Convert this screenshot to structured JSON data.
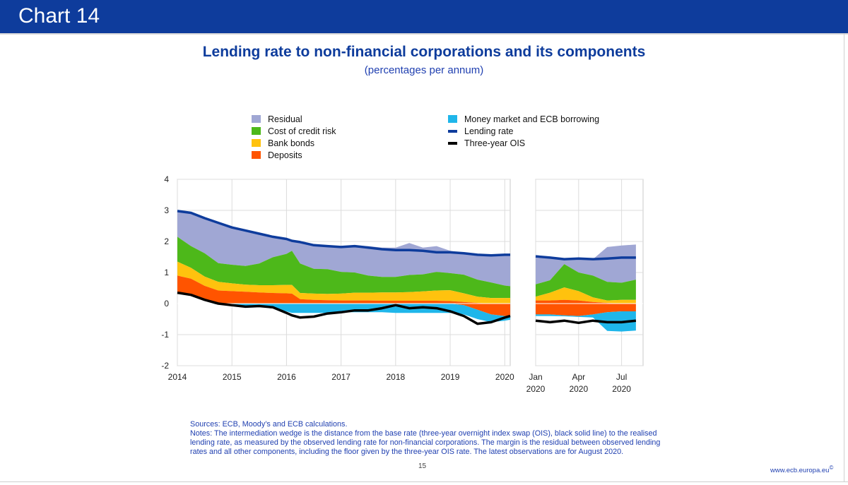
{
  "header": {
    "label": "Chart 14"
  },
  "title": "Lending rate to non-financial corporations and its components",
  "subtitle": "(percentages per annum)",
  "legend_left": [
    {
      "label": "Residual",
      "color": "#a0a7d4"
    },
    {
      "label": "Cost of credit risk",
      "color": "#4db81a"
    },
    {
      "label": "Bank bonds",
      "color": "#ffc20e"
    },
    {
      "label": "Deposits",
      "color": "#ff5400"
    }
  ],
  "legend_right": [
    {
      "label": "Money market and ECB borrowing",
      "color": "#1fb6ea",
      "kind": "area"
    },
    {
      "label": "Lending rate",
      "color": "#0e3c9c",
      "kind": "line"
    },
    {
      "label": "Three-year OIS",
      "color": "#000000",
      "kind": "line"
    }
  ],
  "notes": {
    "sources": "Sources: ECB, Moody’s and ECB calculations.",
    "text": "Notes: The intermediation wedge is the distance from the base rate (three-year overnight index swap (OIS), black solid line) to the realised lending rate, as measured by the observed lending rate for non-financial corporations. The margin is the residual between observed lending rates and all other components, including the floor given by the three-year OIS rate. The latest observations are for August 2020."
  },
  "page_number": "15",
  "site": "www.ecb.europa.eu",
  "site_mark": "©",
  "chart_data": [
    {
      "type": "area",
      "panel": "2014-2020",
      "ylim": [
        -2,
        4
      ],
      "yticks": [
        4,
        3,
        2,
        1,
        0,
        -1,
        -2
      ],
      "xlim": [
        2014.0,
        2020.1
      ],
      "xticks": [
        {
          "value": 2014,
          "label": "2014"
        },
        {
          "value": 2015,
          "label": "2015"
        },
        {
          "value": 2016,
          "label": "2016"
        },
        {
          "value": 2017,
          "label": "2017"
        },
        {
          "value": 2018,
          "label": "2018"
        },
        {
          "value": 2019,
          "label": "2019"
        },
        {
          "value": 2020,
          "label": "2020"
        }
      ],
      "x": [
        2014.0,
        2014.25,
        2014.5,
        2014.75,
        2015.0,
        2015.25,
        2015.5,
        2015.75,
        2016.0,
        2016.1,
        2016.25,
        2016.5,
        2016.75,
        2017.0,
        2017.25,
        2017.5,
        2017.75,
        2018.0,
        2018.25,
        2018.5,
        2018.75,
        2019.0,
        2019.25,
        2019.5,
        2019.75,
        2020.0,
        2020.1
      ],
      "components_positive": {
        "Deposits": [
          0.55,
          0.52,
          0.45,
          0.42,
          0.4,
          0.38,
          0.36,
          0.34,
          0.33,
          0.32,
          0.14,
          0.12,
          0.11,
          0.1,
          0.1,
          0.1,
          0.09,
          0.09,
          0.09,
          0.09,
          0.09,
          0.08,
          0.05,
          0.02,
          0.0,
          0.0,
          0.0
        ],
        "Bank bonds": [
          0.45,
          0.35,
          0.3,
          0.28,
          0.25,
          0.23,
          0.23,
          0.25,
          0.27,
          0.28,
          0.2,
          0.2,
          0.2,
          0.22,
          0.25,
          0.25,
          0.27,
          0.27,
          0.28,
          0.3,
          0.33,
          0.35,
          0.28,
          0.2,
          0.18,
          0.18,
          0.18
        ],
        "Cost of credit risk": [
          0.8,
          0.7,
          0.75,
          0.6,
          0.6,
          0.6,
          0.7,
          0.9,
          1.0,
          1.1,
          0.95,
          0.8,
          0.8,
          0.7,
          0.65,
          0.55,
          0.5,
          0.5,
          0.55,
          0.55,
          0.6,
          0.55,
          0.6,
          0.55,
          0.5,
          0.4,
          0.38
        ]
      },
      "components_negative": {
        "Money market and ECB borrowing": [
          0.0,
          0.0,
          0.0,
          0.02,
          0.05,
          0.08,
          0.1,
          0.15,
          0.25,
          0.3,
          0.3,
          0.3,
          0.3,
          0.28,
          0.28,
          0.28,
          0.28,
          0.3,
          0.3,
          0.3,
          0.3,
          0.3,
          0.3,
          0.3,
          0.25,
          0.15,
          0.12
        ],
        "Deposits_negative": [
          0.0,
          0.0,
          0.0,
          0.0,
          0.0,
          0.0,
          0.0,
          0.0,
          0.0,
          0.0,
          0.0,
          0.0,
          0.0,
          0.0,
          0.0,
          0.0,
          0.0,
          0.0,
          0.0,
          0.0,
          0.0,
          0.0,
          0.05,
          0.2,
          0.35,
          0.4,
          0.4
        ]
      },
      "lending_rate": [
        2.98,
        2.92,
        2.75,
        2.6,
        2.45,
        2.35,
        2.25,
        2.15,
        2.08,
        2.02,
        1.98,
        1.88,
        1.85,
        1.82,
        1.85,
        1.8,
        1.75,
        1.72,
        1.72,
        1.7,
        1.65,
        1.65,
        1.62,
        1.57,
        1.55,
        1.57,
        1.57
      ],
      "three_year_ois": [
        0.35,
        0.28,
        0.12,
        0.0,
        -0.05,
        -0.1,
        -0.08,
        -0.12,
        -0.3,
        -0.38,
        -0.45,
        -0.42,
        -0.32,
        -0.28,
        -0.22,
        -0.22,
        -0.15,
        -0.05,
        -0.15,
        -0.12,
        -0.15,
        -0.25,
        -0.4,
        -0.65,
        -0.6,
        -0.45,
        -0.4
      ],
      "residual_top": [
        2.98,
        2.92,
        2.75,
        2.6,
        2.45,
        2.35,
        2.25,
        2.15,
        2.08,
        2.02,
        1.98,
        1.88,
        1.85,
        1.82,
        1.87,
        1.85,
        1.8,
        1.8,
        1.95,
        1.8,
        1.85,
        1.7,
        1.62,
        1.57,
        1.55,
        1.57,
        1.57
      ]
    },
    {
      "type": "area",
      "panel": "2020",
      "ylim": [
        -2,
        4
      ],
      "xlim": [
        0,
        7.5
      ],
      "xticks": [
        {
          "value": 0,
          "label": "Jan",
          "label2": "2020"
        },
        {
          "value": 3,
          "label": "Apr",
          "label2": "2020"
        },
        {
          "value": 6,
          "label": "Jul",
          "label2": "2020"
        }
      ],
      "x": [
        0,
        1,
        2,
        3,
        4,
        5,
        6,
        7
      ],
      "components_positive": {
        "Deposits": [
          0.1,
          0.1,
          0.12,
          0.1,
          0.05,
          0.02,
          0.0,
          0.0
        ],
        "Bank bonds": [
          0.12,
          0.25,
          0.4,
          0.3,
          0.15,
          0.08,
          0.12,
          0.12
        ],
        "Cost of credit risk": [
          0.4,
          0.4,
          0.75,
          0.6,
          0.7,
          0.6,
          0.55,
          0.65
        ]
      },
      "components_negative": {
        "Money market and ECB borrowing": [
          0.05,
          0.05,
          0.03,
          0.03,
          0.1,
          0.6,
          0.65,
          0.62
        ],
        "Deposits_negative": [
          0.35,
          0.35,
          0.38,
          0.4,
          0.35,
          0.28,
          0.25,
          0.25
        ]
      },
      "lending_rate": [
        1.52,
        1.48,
        1.43,
        1.45,
        1.43,
        1.45,
        1.48,
        1.48
      ],
      "three_year_ois": [
        -0.55,
        -0.6,
        -0.55,
        -0.62,
        -0.55,
        -0.6,
        -0.6,
        -0.55
      ],
      "residual_top": [
        1.52,
        1.48,
        1.43,
        1.45,
        1.43,
        1.82,
        1.87,
        1.9
      ]
    }
  ]
}
